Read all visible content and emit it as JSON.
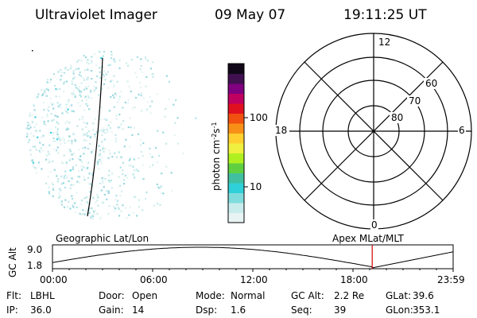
{
  "header": {
    "instrument": "Ultraviolet Imager",
    "date": "09 May 07",
    "time": "19:11:25 UT"
  },
  "colorbar": {
    "label": "photon cm",
    "label_sup1": "-2",
    "label_mid": "s",
    "label_sup2": "-1",
    "tick_labels": [
      "100",
      "10"
    ],
    "colors": [
      "#e8f4f4",
      "#c8ecec",
      "#80dcdc",
      "#30d0d8",
      "#40c0a0",
      "#60d040",
      "#b0f020",
      "#f0f040",
      "#ffd030",
      "#f89018",
      "#f05010",
      "#e01020",
      "#c00060",
      "#800080",
      "#401050",
      "#100818"
    ]
  },
  "polar": {
    "mlt_labels": {
      "top": "12",
      "left": "18",
      "right": "6",
      "bottom": "0"
    },
    "lat_labels": [
      "60",
      "70",
      "80"
    ]
  },
  "altitude_plot": {
    "ylabel": "GC Alt",
    "ymax_label": "9.0",
    "ymin_label": "1.8",
    "left_caption": "Geographic Lat/Lon",
    "right_caption": "Apex MLat/MLT",
    "x_ticks": [
      "00:00",
      "06:00",
      "12:00",
      "18:00",
      "23:59"
    ],
    "current_time_fraction": 0.798
  },
  "status": [
    [
      {
        "key": "Flt:",
        "value": "LBHL"
      },
      {
        "key": "Door:",
        "value": "Open"
      },
      {
        "key": "Mode:",
        "value": "Normal"
      },
      {
        "key": "GC Alt:",
        "value": "2.2 Re"
      },
      {
        "key": "GLat:",
        "value": "39.6"
      }
    ],
    [
      {
        "key": "IP:",
        "value": "36.0"
      },
      {
        "key": "Gain:",
        "value": "14"
      },
      {
        "key": "Dsp:",
        "value": "1.6"
      },
      {
        "key": "Seq:",
        "value": "39"
      },
      {
        "key": "GLon:",
        "value": "353.1"
      }
    ]
  ]
}
